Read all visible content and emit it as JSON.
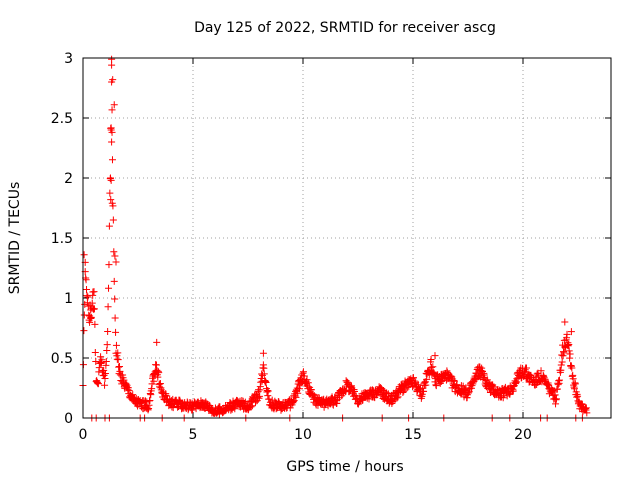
{
  "chart_data": {
    "type": "scatter",
    "title": "Day 125 of 2022, SRMTID for receiver ascg",
    "xlabel": "GPS time / hours",
    "ylabel": "SRMTID / TECUs",
    "xlim": [
      0,
      24
    ],
    "ylim": [
      0,
      3
    ],
    "xticks": [
      0,
      5,
      10,
      15,
      20
    ],
    "yticks": [
      0,
      0.5,
      1,
      1.5,
      2,
      2.5,
      3
    ],
    "xtick_labels": [
      "0",
      "5",
      "10",
      "15",
      "20"
    ],
    "ytick_labels": [
      "0",
      "0.5",
      "1",
      "1.5",
      "2",
      "2.5",
      "3"
    ],
    "grid": true,
    "marker": "+",
    "color": "#ff0000",
    "profile": [
      [
        0.0,
        0.3
      ],
      [
        0.1,
        1.2
      ],
      [
        0.3,
        0.85
      ],
      [
        0.5,
        1.0
      ],
      [
        0.6,
        0.3
      ],
      [
        0.7,
        0.3
      ],
      [
        0.8,
        0.5
      ],
      [
        0.9,
        0.4
      ],
      [
        1.0,
        0.3
      ],
      [
        1.1,
        0.6
      ],
      [
        1.2,
        1.5
      ],
      [
        1.3,
        2.8
      ],
      [
        1.4,
        1.3
      ],
      [
        1.5,
        0.6
      ],
      [
        1.7,
        0.35
      ],
      [
        2.0,
        0.25
      ],
      [
        2.3,
        0.15
      ],
      [
        2.6,
        0.12
      ],
      [
        3.0,
        0.1
      ],
      [
        3.3,
        0.45
      ],
      [
        3.6,
        0.2
      ],
      [
        4.0,
        0.12
      ],
      [
        5.0,
        0.1
      ],
      [
        5.5,
        0.12
      ],
      [
        6.0,
        0.05
      ],
      [
        6.5,
        0.08
      ],
      [
        7.0,
        0.12
      ],
      [
        7.5,
        0.1
      ],
      [
        8.0,
        0.2
      ],
      [
        8.2,
        0.42
      ],
      [
        8.5,
        0.12
      ],
      [
        9.0,
        0.1
      ],
      [
        9.5,
        0.12
      ],
      [
        10.0,
        0.35
      ],
      [
        10.5,
        0.15
      ],
      [
        11.0,
        0.12
      ],
      [
        11.5,
        0.15
      ],
      [
        12.0,
        0.28
      ],
      [
        12.5,
        0.15
      ],
      [
        13.0,
        0.2
      ],
      [
        13.5,
        0.22
      ],
      [
        14.0,
        0.15
      ],
      [
        14.5,
        0.25
      ],
      [
        15.0,
        0.3
      ],
      [
        15.4,
        0.2
      ],
      [
        15.8,
        0.45
      ],
      [
        16.0,
        0.3
      ],
      [
        16.5,
        0.35
      ],
      [
        17.0,
        0.25
      ],
      [
        17.5,
        0.2
      ],
      [
        18.0,
        0.4
      ],
      [
        18.5,
        0.25
      ],
      [
        19.0,
        0.2
      ],
      [
        19.5,
        0.25
      ],
      [
        20.0,
        0.4
      ],
      [
        20.5,
        0.3
      ],
      [
        20.8,
        0.35
      ],
      [
        21.0,
        0.3
      ],
      [
        21.5,
        0.15
      ],
      [
        21.8,
        0.55
      ],
      [
        22.0,
        0.7
      ],
      [
        22.3,
        0.3
      ],
      [
        22.6,
        0.1
      ],
      [
        22.9,
        0.05
      ]
    ],
    "point_spacing_hours": 0.02,
    "spread": 0.06,
    "zero_points_x": [
      0.4,
      0.6,
      1.0,
      1.2,
      2.6,
      2.8,
      3.6,
      4.6,
      7.4,
      9.4,
      11.8,
      13.6,
      14.8,
      16.4,
      18.6,
      19.4,
      20.8,
      21.1,
      22.4,
      22.7
    ],
    "extra_points": [
      [
        1.3,
        2.99
      ],
      [
        1.35,
        2.82
      ],
      [
        1.3,
        2.8
      ],
      [
        1.42,
        2.61
      ],
      [
        1.28,
        2.4
      ],
      [
        1.32,
        2.38
      ],
      [
        1.3,
        2.3
      ],
      [
        1.25,
        2.0
      ],
      [
        1.28,
        1.98
      ],
      [
        1.26,
        1.82
      ],
      [
        1.33,
        1.79
      ],
      [
        1.45,
        1.35
      ],
      [
        1.5,
        1.3
      ],
      [
        0.05,
        1.36
      ],
      [
        0.1,
        1.22
      ],
      [
        0.45,
        1.05
      ],
      [
        0.35,
        0.9
      ],
      [
        0.3,
        0.85
      ],
      [
        21.9,
        0.8
      ],
      [
        22.2,
        0.72
      ],
      [
        8.2,
        0.54
      ],
      [
        3.35,
        0.63
      ],
      [
        16.0,
        0.52
      ]
    ]
  }
}
